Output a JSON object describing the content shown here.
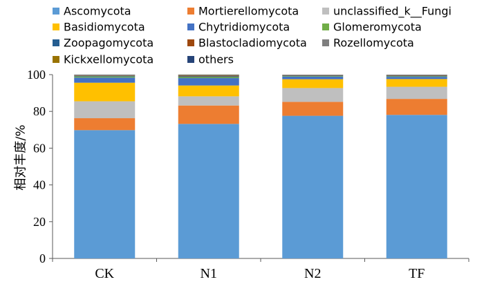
{
  "chart_data": {
    "type": "bar",
    "stacked": true,
    "title": "",
    "xlabel": "",
    "ylabel": "相对丰度/%",
    "ylim": [
      0,
      100
    ],
    "yticks": [
      0,
      20,
      40,
      60,
      80,
      100
    ],
    "grid": false,
    "legend_position": "top",
    "categories": [
      "CK",
      "N1",
      "N2",
      "TF"
    ],
    "series": [
      {
        "name": "Ascomycota",
        "color": "#5B9BD5",
        "values": [
          69.8,
          73.2,
          77.6,
          78.1
        ]
      },
      {
        "name": "Mortierellomycota",
        "color": "#ED7D31",
        "values": [
          6.5,
          10.0,
          7.6,
          8.7
        ]
      },
      {
        "name": "unclassified_k__Fungi",
        "color": "#BFBFBF",
        "values": [
          9.2,
          5.0,
          7.5,
          6.6
        ]
      },
      {
        "name": "Basidiomycota",
        "color": "#FFC000",
        "values": [
          10.1,
          5.9,
          4.8,
          4.2
        ]
      },
      {
        "name": "Chytridiomycota",
        "color": "#4472C4",
        "values": [
          2.8,
          4.0,
          1.4,
          1.2
        ]
      },
      {
        "name": "Glomeromycota",
        "color": "#70AD47",
        "values": [
          0.6,
          0.6,
          0.3,
          0.3
        ]
      },
      {
        "name": "Zoopagomycota",
        "color": "#255E91",
        "values": [
          0.3,
          0.4,
          0.3,
          0.3
        ]
      },
      {
        "name": "Blastocladiomycota",
        "color": "#9E480E",
        "values": [
          0.2,
          0.3,
          0.2,
          0.2
        ]
      },
      {
        "name": "Rozellomycota",
        "color": "#7F7F7F",
        "values": [
          0.2,
          0.2,
          0.1,
          0.2
        ]
      },
      {
        "name": "Kickxellomycota",
        "color": "#997300",
        "values": [
          0.1,
          0.2,
          0.1,
          0.1
        ]
      },
      {
        "name": "others",
        "color": "#264478",
        "values": [
          0.2,
          0.2,
          0.1,
          0.1
        ]
      }
    ]
  }
}
